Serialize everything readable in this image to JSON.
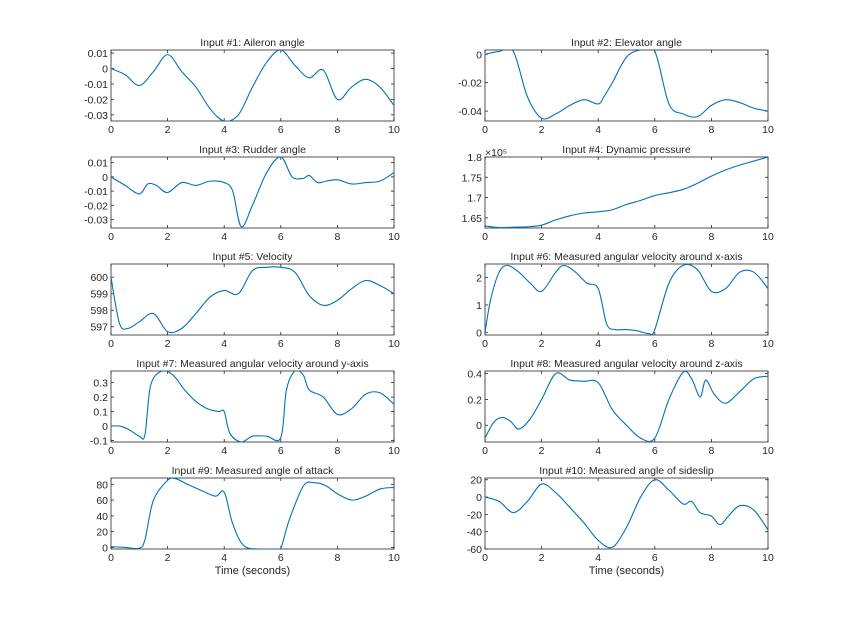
{
  "colors": {
    "line": "#0072BD",
    "axis": "#262626"
  },
  "chart_data": [
    {
      "type": "line",
      "title": "Input #1: Aileron angle",
      "xlabel": "",
      "ylabel": "",
      "xlim": [
        0,
        10
      ],
      "ylim": [
        -0.034,
        0.012
      ],
      "xticks": [
        0,
        2,
        4,
        6,
        8,
        10
      ],
      "xticklabels": [
        "0",
        "2",
        "4",
        "6",
        "8",
        "10"
      ],
      "yticks": [
        0.01,
        0,
        -0.01,
        -0.02,
        -0.03
      ],
      "yticklabels": [
        "0.01",
        "0",
        "-0.01",
        "-0.02",
        "-0.03"
      ],
      "x": [
        0,
        0.5,
        1,
        1.5,
        2,
        2.5,
        3,
        3.5,
        4,
        4.5,
        5,
        5.5,
        6,
        6.5,
        7,
        7.5,
        8,
        8.5,
        9,
        9.5,
        10
      ],
      "y": [
        0,
        -0.004,
        -0.011,
        -0.002,
        0.009,
        -0.002,
        -0.012,
        -0.026,
        -0.034,
        -0.03,
        -0.012,
        0.004,
        0.012,
        0.002,
        -0.006,
        -0.001,
        -0.02,
        -0.012,
        -0.007,
        -0.012,
        -0.024
      ]
    },
    {
      "type": "line",
      "title": "Input #2: Elevator angle",
      "xlabel": "",
      "ylabel": "",
      "xlim": [
        0,
        10
      ],
      "ylim": [
        -0.047,
        0.003
      ],
      "xticks": [
        0,
        2,
        4,
        6,
        8,
        10
      ],
      "xticklabels": [
        "0",
        "2",
        "4",
        "6",
        "8",
        "10"
      ],
      "yticks": [
        0,
        -0.02,
        -0.04
      ],
      "yticklabels": [
        "0",
        "-0.02",
        "-0.04"
      ],
      "x": [
        0,
        0.5,
        1,
        1.5,
        2,
        2.5,
        3,
        3.5,
        4,
        4.2,
        4.5,
        5,
        5.5,
        6,
        6.5,
        7,
        7.5,
        8,
        8.5,
        9,
        9.5,
        10
      ],
      "y": [
        0,
        0.002,
        0.002,
        -0.03,
        -0.045,
        -0.042,
        -0.036,
        -0.032,
        -0.035,
        -0.03,
        -0.02,
        -0.002,
        0.003,
        0.002,
        -0.035,
        -0.042,
        -0.044,
        -0.036,
        -0.032,
        -0.034,
        -0.038,
        -0.04
      ]
    },
    {
      "type": "line",
      "title": "Input #3: Rudder angle",
      "xlabel": "",
      "ylabel": "",
      "xlim": [
        0,
        10
      ],
      "ylim": [
        -0.036,
        0.014
      ],
      "xticks": [
        0,
        2,
        4,
        6,
        8,
        10
      ],
      "xticklabels": [
        "0",
        "2",
        "4",
        "6",
        "8",
        "10"
      ],
      "yticks": [
        0.01,
        0,
        -0.01,
        -0.02,
        -0.03
      ],
      "yticklabels": [
        "0.01",
        "0",
        "-0.01",
        "-0.02",
        "-0.03"
      ],
      "x": [
        0,
        0.5,
        1,
        1.3,
        1.6,
        2,
        2.5,
        3,
        3.5,
        4,
        4.3,
        4.6,
        5,
        5.5,
        6,
        6.4,
        6.8,
        7,
        7.3,
        7.6,
        8,
        8.5,
        9,
        9.5,
        10
      ],
      "y": [
        0,
        -0.006,
        -0.012,
        -0.005,
        -0.006,
        -0.011,
        -0.004,
        -0.006,
        -0.003,
        -0.004,
        -0.01,
        -0.035,
        -0.02,
        0.003,
        0.014,
        0,
        -0.001,
        0.001,
        -0.004,
        -0.003,
        -0.002,
        -0.005,
        -0.004,
        -0.003,
        0.003
      ]
    },
    {
      "type": "line",
      "title": "Input #4: Dynamic pressure",
      "xlabel": "",
      "ylabel": "",
      "xlim": [
        0,
        10
      ],
      "ylim": [
        162500,
        180000
      ],
      "exponent": "×10⁵",
      "xticks": [
        0,
        2,
        4,
        6,
        8,
        10
      ],
      "xticklabels": [
        "0",
        "2",
        "4",
        "6",
        "8",
        "10"
      ],
      "yticks": [
        180000,
        175000,
        170000,
        165000
      ],
      "yticklabels": [
        "1.8",
        "1.75",
        "1.7",
        "1.65"
      ],
      "x": [
        0,
        0.5,
        1,
        1.5,
        2,
        2.5,
        3,
        3.5,
        4,
        4.5,
        5,
        5.5,
        6,
        6.5,
        7,
        7.5,
        8,
        8.5,
        9,
        9.5,
        10
      ],
      "y": [
        163000,
        162600,
        162700,
        162800,
        163200,
        164500,
        165500,
        166200,
        166500,
        167000,
        168300,
        169300,
        170500,
        171200,
        172000,
        173500,
        175300,
        176800,
        178000,
        179000,
        180000
      ]
    },
    {
      "type": "line",
      "title": "Input #5: Velocity",
      "xlabel": "",
      "ylabel": "",
      "xlim": [
        0,
        10
      ],
      "ylim": [
        596.5,
        600.8
      ],
      "xticks": [
        0,
        2,
        4,
        6,
        8,
        10
      ],
      "xticklabels": [
        "0",
        "2",
        "4",
        "6",
        "8",
        "10"
      ],
      "yticks": [
        600,
        599,
        598,
        597
      ],
      "yticklabels": [
        "600",
        "599",
        "598",
        "597"
      ],
      "x": [
        0,
        0.3,
        0.6,
        1,
        1.5,
        2,
        2.5,
        3,
        3.5,
        4,
        4.5,
        5,
        5.5,
        6,
        6.5,
        7,
        7.5,
        8,
        8.5,
        9,
        9.5,
        10
      ],
      "y": [
        600,
        597.2,
        596.9,
        597.3,
        597.8,
        596.7,
        596.9,
        597.8,
        598.8,
        599.2,
        599,
        600.4,
        600.6,
        600.6,
        600.3,
        598.9,
        598.3,
        598.6,
        599.3,
        599.8,
        599.5,
        599
      ]
    },
    {
      "type": "line",
      "title": "Input #6: Measured angular velocity around x-axis",
      "xlabel": "",
      "ylabel": "",
      "xlim": [
        0,
        10
      ],
      "ylim": [
        -0.1,
        2.5
      ],
      "xticks": [
        0,
        2,
        4,
        6,
        8,
        10
      ],
      "xticklabels": [
        "0",
        "2",
        "4",
        "6",
        "8",
        "10"
      ],
      "yticks": [
        2,
        1,
        0
      ],
      "yticklabels": [
        "2",
        "1",
        "0"
      ],
      "x": [
        0,
        0.2,
        0.5,
        0.8,
        1.2,
        1.6,
        2,
        2.5,
        2.8,
        3.2,
        3.6,
        4,
        4.3,
        4.6,
        5,
        5.4,
        5.8,
        6,
        6.5,
        7,
        7.5,
        8,
        8.5,
        9,
        9.5,
        10
      ],
      "y": [
        0,
        1.2,
        2.2,
        2.45,
        2.2,
        1.8,
        1.5,
        2.2,
        2.45,
        2.2,
        1.8,
        1.6,
        0.3,
        0.1,
        0.1,
        0.05,
        -0.05,
        0.1,
        1.8,
        2.45,
        2.3,
        1.5,
        1.6,
        2.2,
        2.2,
        1.6
      ]
    },
    {
      "type": "line",
      "title": "Input #7: Measured angular velocity around y-axis",
      "xlabel": "",
      "ylabel": "",
      "xlim": [
        0,
        10
      ],
      "ylim": [
        -0.11,
        0.38
      ],
      "xticks": [
        0,
        2,
        4,
        6,
        8,
        10
      ],
      "xticklabels": [
        "0",
        "2",
        "4",
        "6",
        "8",
        "10"
      ],
      "yticks": [
        0.3,
        0.2,
        0.1,
        0,
        -0.1
      ],
      "yticklabels": [
        "0.3",
        "0.2",
        "0.1",
        "0",
        "-0.1"
      ],
      "x": [
        0,
        0.3,
        0.6,
        1,
        1.2,
        1.4,
        1.8,
        2.2,
        2.6,
        3,
        3.4,
        3.8,
        4,
        4.2,
        4.6,
        5,
        5.5,
        6,
        6.2,
        6.5,
        6.8,
        7,
        7.5,
        8,
        8.5,
        9,
        9.5,
        10
      ],
      "y": [
        0,
        0,
        -0.02,
        -0.07,
        -0.06,
        0.28,
        0.38,
        0.35,
        0.25,
        0.17,
        0.12,
        0.1,
        0.1,
        -0.05,
        -0.11,
        -0.07,
        -0.07,
        -0.08,
        0.25,
        0.38,
        0.35,
        0.25,
        0.2,
        0.08,
        0.12,
        0.22,
        0.23,
        0.15
      ]
    },
    {
      "type": "line",
      "title": "Input #8: Measured angular velocity around z-axis",
      "xlabel": "",
      "ylabel": "",
      "xlim": [
        0,
        10
      ],
      "ylim": [
        -0.13,
        0.42
      ],
      "xticks": [
        0,
        2,
        4,
        6,
        8,
        10
      ],
      "xticklabels": [
        "0",
        "2",
        "4",
        "6",
        "8",
        "10"
      ],
      "yticks": [
        0.4,
        0.2,
        0
      ],
      "yticklabels": [
        "0.4",
        "0.2",
        "0"
      ],
      "x": [
        0,
        0.3,
        0.6,
        0.9,
        1.2,
        1.6,
        2,
        2.5,
        3,
        3.5,
        4,
        4.5,
        5,
        5.5,
        6,
        6.5,
        7,
        7.3,
        7.6,
        7.8,
        8.1,
        8.5,
        9,
        9.5,
        10
      ],
      "y": [
        -0.1,
        0.02,
        0.06,
        0.03,
        -0.03,
        0.05,
        0.2,
        0.4,
        0.35,
        0.34,
        0.33,
        0.12,
        0,
        -0.1,
        -0.1,
        0.2,
        0.41,
        0.36,
        0.22,
        0.35,
        0.24,
        0.17,
        0.26,
        0.36,
        0.38
      ]
    },
    {
      "type": "line",
      "title": "Input #9: Measured angle of attack",
      "xlabel": "Time (seconds)",
      "ylabel": "",
      "xlim": [
        0,
        10
      ],
      "ylim": [
        -2,
        88
      ],
      "xticks": [
        0,
        2,
        4,
        6,
        8,
        10
      ],
      "xticklabels": [
        "0",
        "2",
        "4",
        "6",
        "8",
        "10"
      ],
      "yticks": [
        80,
        60,
        40,
        20,
        0
      ],
      "yticklabels": [
        "80",
        "60",
        "40",
        "20",
        "0"
      ],
      "x": [
        0,
        0.5,
        1,
        1.2,
        1.5,
        2,
        2.3,
        2.7,
        3.2,
        3.7,
        4,
        4.3,
        4.7,
        5.3,
        5.8,
        6,
        6.3,
        6.8,
        7.2,
        7.6,
        8,
        8.5,
        9,
        9.5,
        10
      ],
      "y": [
        1,
        0,
        -1,
        10,
        60,
        85,
        87,
        80,
        72,
        65,
        70,
        30,
        2,
        -2,
        -2,
        -1,
        35,
        78,
        82,
        78,
        68,
        60,
        65,
        74,
        76
      ]
    },
    {
      "type": "line",
      "title": "Input #10: Measured angle of sideslip",
      "xlabel": "Time (seconds)",
      "ylabel": "",
      "xlim": [
        0,
        10
      ],
      "ylim": [
        -60,
        22
      ],
      "xticks": [
        0,
        2,
        4,
        6,
        8,
        10
      ],
      "xticklabels": [
        "0",
        "2",
        "4",
        "6",
        "8",
        "10"
      ],
      "yticks": [
        20,
        0,
        -20,
        -40,
        -60
      ],
      "yticklabels": [
        "20",
        "0",
        "-20",
        "-40",
        "-60"
      ],
      "x": [
        0,
        0.5,
        1,
        1.5,
        2,
        2.5,
        3,
        3.5,
        4,
        4.5,
        5,
        5.5,
        6,
        6.5,
        7,
        7.3,
        7.6,
        8,
        8.3,
        8.6,
        9,
        9.5,
        10
      ],
      "y": [
        0,
        -5,
        -18,
        -5,
        15,
        5,
        -12,
        -30,
        -50,
        -58,
        -35,
        0,
        20,
        8,
        -8,
        -5,
        -18,
        -22,
        -32,
        -22,
        -10,
        -15,
        -38
      ]
    }
  ]
}
